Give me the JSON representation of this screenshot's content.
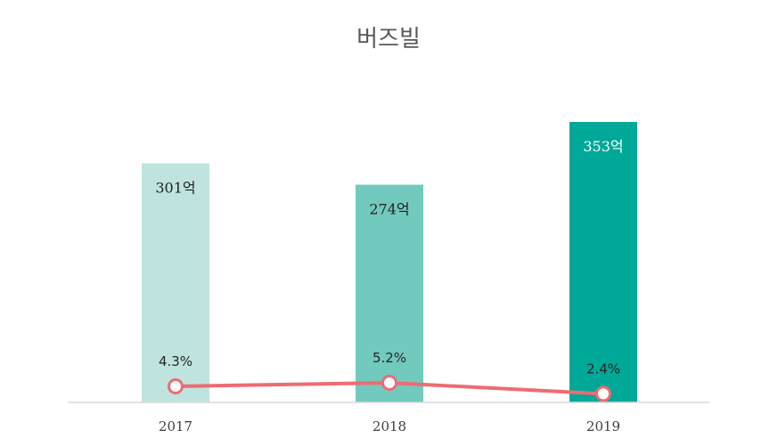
{
  "chart_data": {
    "type": "bar",
    "title": "버즈빌",
    "categories": [
      "2017",
      "2018",
      "2019"
    ],
    "series": [
      {
        "type": "bar",
        "values": [
          301,
          274,
          353
        ],
        "labels": [
          "301억",
          "274억",
          "353억"
        ],
        "colors": [
          "#bfe4df",
          "#72c9bd",
          "#00a898"
        ],
        "label_colors": [
          "#1f1f1f",
          "#1f1f1f",
          "#ffffff"
        ]
      },
      {
        "type": "line",
        "values": [
          4.3,
          5.2,
          2.4
        ],
        "labels": [
          "4.3%",
          "5.2%",
          "2.4%"
        ],
        "color": "#ee6b73"
      }
    ],
    "ylim": [
      0,
      353
    ],
    "line_ylim": [
      0,
      5.2
    ],
    "grid": false,
    "legend": "none"
  }
}
